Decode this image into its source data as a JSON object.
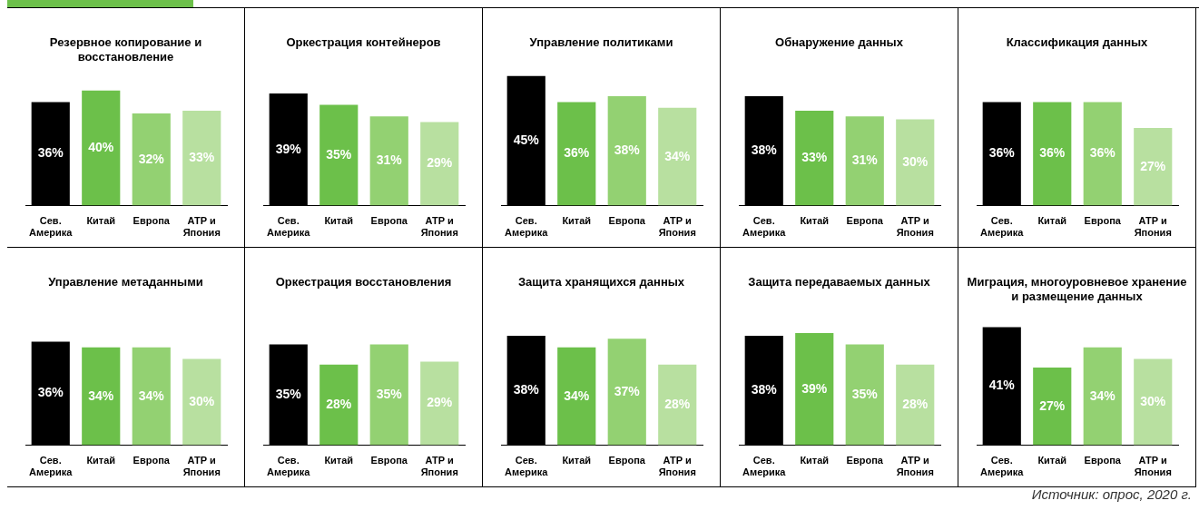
{
  "chart_data": [
    {
      "type": "bar",
      "title": "Резервное копирование и восстановление",
      "categories": [
        "Сев. Америка",
        "Китай",
        "Европа",
        "АТР и Япония"
      ],
      "values": [
        36,
        40,
        32,
        33
      ],
      "colors": [
        "#000000",
        "#6cc04a",
        "#93d172",
        "#b8e0a0"
      ],
      "value_labels": [
        "36%",
        "40%",
        "32%",
        "33%"
      ]
    },
    {
      "type": "bar",
      "title": "Оркестрация контейнеров",
      "categories": [
        "Сев. Америка",
        "Китай",
        "Европа",
        "АТР и Япония"
      ],
      "values": [
        39,
        35,
        31,
        29
      ],
      "colors": [
        "#000000",
        "#6cc04a",
        "#93d172",
        "#b8e0a0"
      ],
      "value_labels": [
        "39%",
        "35%",
        "31%",
        "29%"
      ]
    },
    {
      "type": "bar",
      "title": "Управление политиками",
      "categories": [
        "Сев. Америка",
        "Китай",
        "Европа",
        "АТР и Япония"
      ],
      "values": [
        45,
        36,
        38,
        34
      ],
      "colors": [
        "#000000",
        "#6cc04a",
        "#93d172",
        "#b8e0a0"
      ],
      "value_labels": [
        "45%",
        "36%",
        "38%",
        "34%"
      ]
    },
    {
      "type": "bar",
      "title": "Обнаружение данных",
      "categories": [
        "Сев. Америка",
        "Китай",
        "Европа",
        "АТР и Япония"
      ],
      "values": [
        38,
        33,
        31,
        30
      ],
      "colors": [
        "#000000",
        "#6cc04a",
        "#93d172",
        "#b8e0a0"
      ],
      "value_labels": [
        "38%",
        "33%",
        "31%",
        "30%"
      ]
    },
    {
      "type": "bar",
      "title": "Классификация данных",
      "categories": [
        "Сев. Америка",
        "Китай",
        "Европа",
        "АТР и Япония"
      ],
      "values": [
        36,
        36,
        36,
        27
      ],
      "colors": [
        "#000000",
        "#6cc04a",
        "#93d172",
        "#b8e0a0"
      ],
      "value_labels": [
        "36%",
        "36%",
        "36%",
        "27%"
      ]
    },
    {
      "type": "bar",
      "title": "Управление метаданными",
      "categories": [
        "Сев. Америка",
        "Китай",
        "Европа",
        "АТР и Япония"
      ],
      "values": [
        36,
        34,
        34,
        30
      ],
      "colors": [
        "#000000",
        "#6cc04a",
        "#93d172",
        "#b8e0a0"
      ],
      "value_labels": [
        "36%",
        "34%",
        "34%",
        "30%"
      ]
    },
    {
      "type": "bar",
      "title": "Оркестрация восстановления",
      "categories": [
        "Сев. Америка",
        "Китай",
        "Европа",
        "АТР и Япония"
      ],
      "values": [
        35,
        28,
        35,
        29
      ],
      "colors": [
        "#000000",
        "#6cc04a",
        "#93d172",
        "#b8e0a0"
      ],
      "value_labels": [
        "35%",
        "28%",
        "35%",
        "29%"
      ]
    },
    {
      "type": "bar",
      "title": "Защита хранящихся данных",
      "categories": [
        "Сев. Америка",
        "Китай",
        "Европа",
        "АТР и Япония"
      ],
      "values": [
        38,
        34,
        37,
        28
      ],
      "colors": [
        "#000000",
        "#6cc04a",
        "#93d172",
        "#b8e0a0"
      ],
      "value_labels": [
        "38%",
        "34%",
        "37%",
        "28%"
      ]
    },
    {
      "type": "bar",
      "title": "Защита передаваемых данных",
      "categories": [
        "Сев. Америка",
        "Китай",
        "Европа",
        "АТР и Япония"
      ],
      "values": [
        38,
        39,
        35,
        28
      ],
      "colors": [
        "#000000",
        "#6cc04a",
        "#93d172",
        "#b8e0a0"
      ],
      "value_labels": [
        "38%",
        "39%",
        "35%",
        "28%"
      ]
    },
    {
      "type": "bar",
      "title": "Миграция, многоуровневое хранение и размещение данных",
      "categories": [
        "Сев. Америка",
        "Китай",
        "Европа",
        "АТР и Япония"
      ],
      "values": [
        41,
        27,
        34,
        30
      ],
      "colors": [
        "#000000",
        "#6cc04a",
        "#93d172",
        "#b8e0a0"
      ],
      "value_labels": [
        "41%",
        "27%",
        "34%",
        "30%"
      ],
      "annotations": [
        "Источник: опрос, 2020 г."
      ]
    }
  ]
}
